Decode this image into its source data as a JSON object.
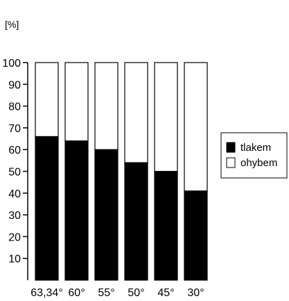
{
  "chart_data": {
    "type": "bar",
    "stacked": true,
    "unit_label": "[%]",
    "categories": [
      "63,34°",
      "60°",
      "55°",
      "50°",
      "45°",
      "30°"
    ],
    "series": [
      {
        "name": "tlakem",
        "color": "#000000",
        "values": [
          66,
          64,
          60,
          54,
          50,
          41
        ]
      },
      {
        "name": "ohybem",
        "color": "#ffffff",
        "values": [
          34,
          36,
          40,
          46,
          50,
          59
        ]
      }
    ],
    "yticks": [
      10,
      20,
      30,
      40,
      50,
      60,
      70,
      80,
      90,
      100
    ],
    "ylim": [
      0,
      100
    ],
    "grid": false,
    "legend_position": "right"
  }
}
